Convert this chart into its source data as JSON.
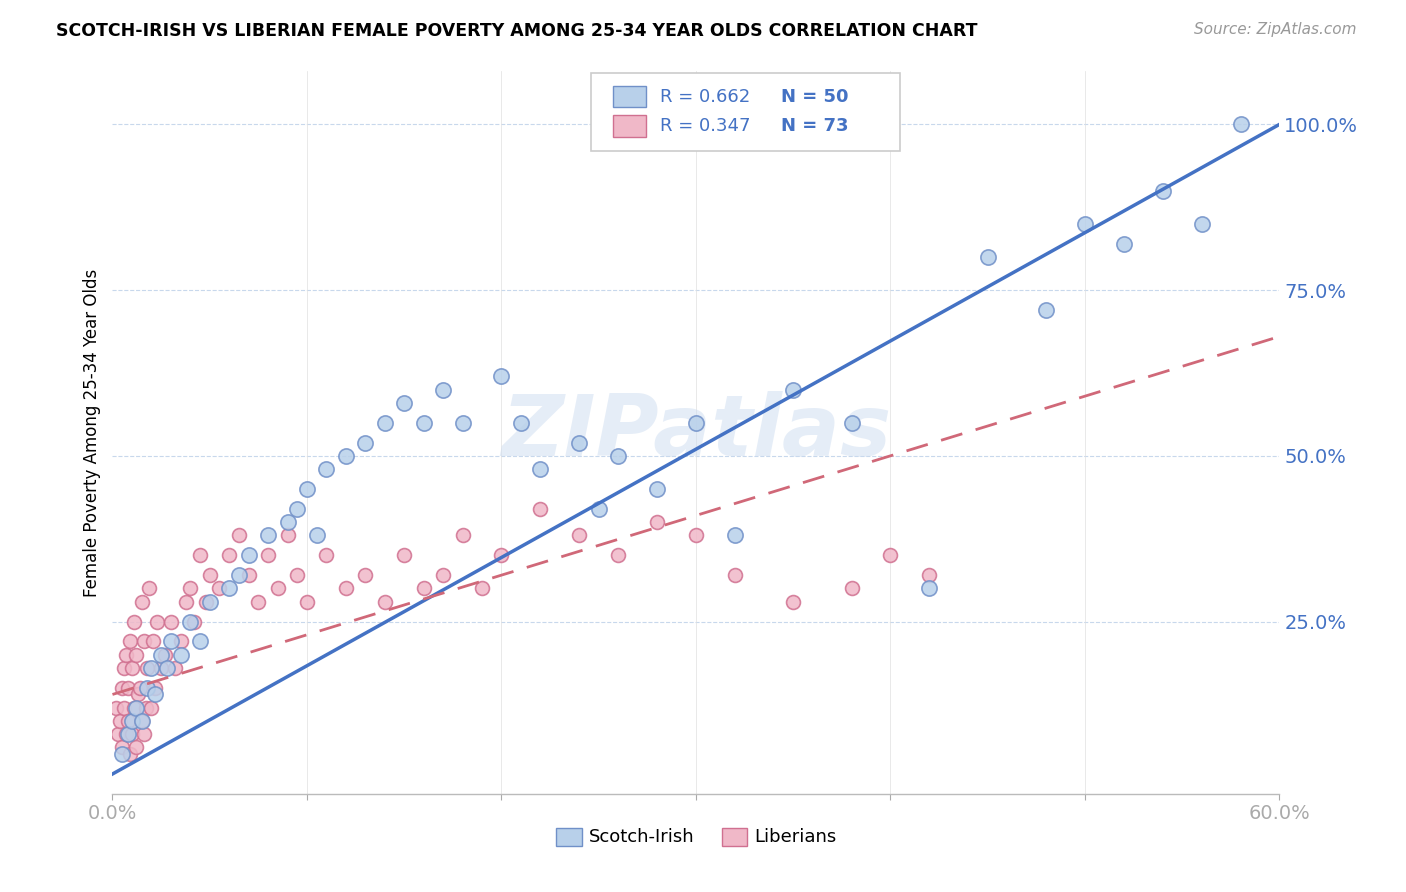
{
  "title": "SCOTCH-IRISH VS LIBERIAN FEMALE POVERTY AMONG 25-34 YEAR OLDS CORRELATION CHART",
  "source": "Source: ZipAtlas.com",
  "ylabel": "Female Poverty Among 25-34 Year Olds",
  "xlim": [
    0.0,
    0.6
  ],
  "ylim": [
    -0.01,
    1.08
  ],
  "xtick_pos": [
    0.0,
    0.1,
    0.2,
    0.3,
    0.4,
    0.5,
    0.6
  ],
  "xticklabels": [
    "0.0%",
    "",
    "",
    "",
    "",
    "",
    "60.0%"
  ],
  "yticks_right": [
    0.25,
    0.5,
    0.75,
    1.0
  ],
  "yticklabels_right": [
    "25.0%",
    "50.0%",
    "75.0%",
    "100.0%"
  ],
  "watermark": "ZIPatlas",
  "scotch_irish_fill": "#b8d0ea",
  "scotch_irish_edge": "#7090c8",
  "liberian_fill": "#f0b8c8",
  "liberian_edge": "#d07090",
  "scotch_irish_line_color": "#4472c4",
  "liberian_line_color": "#d06878",
  "scotch_irish_R": "0.662",
  "scotch_irish_N": "50",
  "liberian_R": "0.347",
  "liberian_N": "73",
  "scotch_irish_x": [
    0.005,
    0.008,
    0.01,
    0.012,
    0.015,
    0.018,
    0.02,
    0.022,
    0.025,
    0.028,
    0.03,
    0.035,
    0.04,
    0.045,
    0.05,
    0.06,
    0.065,
    0.07,
    0.08,
    0.09,
    0.095,
    0.1,
    0.105,
    0.11,
    0.12,
    0.13,
    0.14,
    0.15,
    0.16,
    0.17,
    0.18,
    0.2,
    0.21,
    0.22,
    0.24,
    0.25,
    0.26,
    0.28,
    0.3,
    0.32,
    0.35,
    0.38,
    0.42,
    0.45,
    0.48,
    0.5,
    0.52,
    0.54,
    0.56,
    0.58
  ],
  "scotch_irish_y": [
    0.05,
    0.08,
    0.1,
    0.12,
    0.1,
    0.15,
    0.18,
    0.14,
    0.2,
    0.18,
    0.22,
    0.2,
    0.25,
    0.22,
    0.28,
    0.3,
    0.32,
    0.35,
    0.38,
    0.4,
    0.42,
    0.45,
    0.38,
    0.48,
    0.5,
    0.52,
    0.55,
    0.58,
    0.55,
    0.6,
    0.55,
    0.62,
    0.55,
    0.48,
    0.52,
    0.42,
    0.5,
    0.45,
    0.55,
    0.38,
    0.6,
    0.55,
    0.3,
    0.8,
    0.72,
    0.85,
    0.82,
    0.9,
    0.85,
    1.0
  ],
  "liberian_x": [
    0.002,
    0.003,
    0.004,
    0.005,
    0.005,
    0.006,
    0.006,
    0.007,
    0.007,
    0.008,
    0.008,
    0.009,
    0.009,
    0.01,
    0.01,
    0.011,
    0.011,
    0.012,
    0.012,
    0.013,
    0.014,
    0.015,
    0.015,
    0.016,
    0.016,
    0.017,
    0.018,
    0.019,
    0.02,
    0.021,
    0.022,
    0.023,
    0.025,
    0.027,
    0.03,
    0.032,
    0.035,
    0.038,
    0.04,
    0.042,
    0.045,
    0.048,
    0.05,
    0.055,
    0.06,
    0.065,
    0.07,
    0.075,
    0.08,
    0.085,
    0.09,
    0.095,
    0.1,
    0.11,
    0.12,
    0.13,
    0.14,
    0.15,
    0.16,
    0.17,
    0.18,
    0.19,
    0.2,
    0.22,
    0.24,
    0.26,
    0.28,
    0.3,
    0.32,
    0.35,
    0.38,
    0.4,
    0.42
  ],
  "liberian_y": [
    0.12,
    0.08,
    0.1,
    0.15,
    0.06,
    0.12,
    0.18,
    0.08,
    0.2,
    0.1,
    0.15,
    0.05,
    0.22,
    0.08,
    0.18,
    0.12,
    0.25,
    0.06,
    0.2,
    0.14,
    0.15,
    0.1,
    0.28,
    0.08,
    0.22,
    0.12,
    0.18,
    0.3,
    0.12,
    0.22,
    0.15,
    0.25,
    0.18,
    0.2,
    0.25,
    0.18,
    0.22,
    0.28,
    0.3,
    0.25,
    0.35,
    0.28,
    0.32,
    0.3,
    0.35,
    0.38,
    0.32,
    0.28,
    0.35,
    0.3,
    0.38,
    0.32,
    0.28,
    0.35,
    0.3,
    0.32,
    0.28,
    0.35,
    0.3,
    0.32,
    0.38,
    0.3,
    0.35,
    0.42,
    0.38,
    0.35,
    0.4,
    0.38,
    0.32,
    0.28,
    0.3,
    0.35,
    0.32
  ],
  "si_line_x0": 0.0,
  "si_line_x1": 0.6,
  "si_line_y0": 0.02,
  "si_line_y1": 1.0,
  "lib_line_x0": 0.0,
  "lib_line_x1": 0.6,
  "lib_line_y0": 0.14,
  "lib_line_y1": 0.68
}
